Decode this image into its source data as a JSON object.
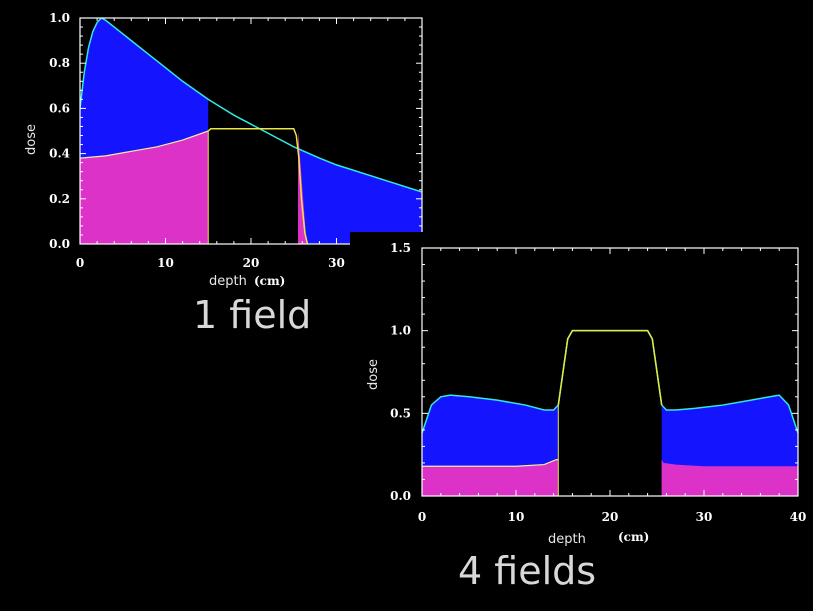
{
  "chart_data": [
    {
      "type": "area",
      "xlabel": "depth",
      "xunit": "(cm)",
      "ylabel": "dose",
      "caption": "1 field",
      "xlim": [
        0,
        40
      ],
      "ylim": [
        0,
        1.0
      ],
      "xticks": [
        "0",
        "10",
        "20",
        "30"
      ],
      "yticks": [
        "0.0",
        "0.2",
        "0.4",
        "0.6",
        "0.8",
        "1.0"
      ],
      "target_range": [
        15,
        25.5
      ],
      "colors": {
        "total": "#1414ff",
        "normal": "#dc32c8",
        "total_line": "#30e8e0",
        "target_line": "#e8e840",
        "normal_line": "#f0f0a0"
      },
      "series": [
        {
          "x": [
            0,
            0.5,
            1,
            1.5,
            2,
            2.5,
            3,
            4,
            5,
            6,
            8,
            10,
            12,
            15,
            18,
            20,
            22,
            25,
            28,
            30,
            35,
            40
          ],
          "values": [
            0.6,
            0.76,
            0.87,
            0.94,
            0.98,
            1.0,
            0.99,
            0.96,
            0.93,
            0.9,
            0.84,
            0.78,
            0.72,
            0.64,
            0.57,
            0.53,
            0.49,
            0.43,
            0.38,
            0.35,
            0.29,
            0.23
          ]
        },
        {
          "x": [
            0,
            3,
            6,
            9,
            12,
            15,
            15.01,
            25.5,
            25.5,
            26,
            26.5,
            40
          ],
          "values": [
            0.38,
            0.39,
            0.41,
            0.43,
            0.46,
            0.5,
            0.0,
            0.0,
            0.5,
            0.25,
            0.0,
            0.0
          ]
        },
        {
          "x": [
            15,
            15.3,
            16,
            20,
            24.5,
            25,
            25.3,
            25.6,
            25.9,
            26.3,
            26.6
          ],
          "values": [
            0.5,
            0.51,
            0.51,
            0.51,
            0.51,
            0.51,
            0.48,
            0.38,
            0.2,
            0.05,
            0.0
          ]
        }
      ]
    },
    {
      "type": "area",
      "xlabel": "depth",
      "xunit": "(cm)",
      "ylabel": "dose",
      "caption": "4 fields",
      "xlim": [
        0,
        40
      ],
      "ylim": [
        0,
        1.5
      ],
      "xticks": [
        "0",
        "10",
        "20",
        "30",
        "40"
      ],
      "yticks": [
        "0.0",
        "0.5",
        "1.0",
        "1.5"
      ],
      "target_range": [
        14.5,
        25.5
      ],
      "colors": {
        "total": "#1414ff",
        "normal": "#dc32c8",
        "total_line": "#30e8e0",
        "target_line": "#e8e840",
        "normal_line": "#f0f0a0"
      },
      "series": [
        {
          "x": [
            0,
            1,
            2,
            3,
            5,
            8,
            11,
            13,
            14,
            14.5,
            15,
            15.5,
            16,
            24,
            24.5,
            25,
            25.5,
            26,
            27,
            29,
            32,
            35,
            37,
            38,
            39,
            40
          ],
          "values": [
            0.38,
            0.55,
            0.6,
            0.61,
            0.6,
            0.58,
            0.55,
            0.52,
            0.52,
            0.55,
            0.75,
            0.95,
            1.0,
            1.0,
            0.95,
            0.75,
            0.55,
            0.52,
            0.52,
            0.53,
            0.55,
            0.58,
            0.6,
            0.61,
            0.55,
            0.38
          ]
        },
        {
          "x": [
            0,
            5,
            10,
            13,
            14.3,
            14.5,
            14.51,
            25.49,
            25.5,
            25.7,
            27,
            30,
            35,
            40
          ],
          "values": [
            0.18,
            0.18,
            0.18,
            0.19,
            0.22,
            0.22,
            0.0,
            0.0,
            0.22,
            0.2,
            0.19,
            0.18,
            0.18,
            0.18
          ]
        },
        {
          "x": [
            14.5,
            15,
            15.5,
            16,
            24,
            24.5,
            25,
            25.5
          ],
          "values": [
            0.55,
            0.75,
            0.95,
            1.0,
            1.0,
            0.95,
            0.75,
            0.55
          ]
        }
      ]
    }
  ]
}
